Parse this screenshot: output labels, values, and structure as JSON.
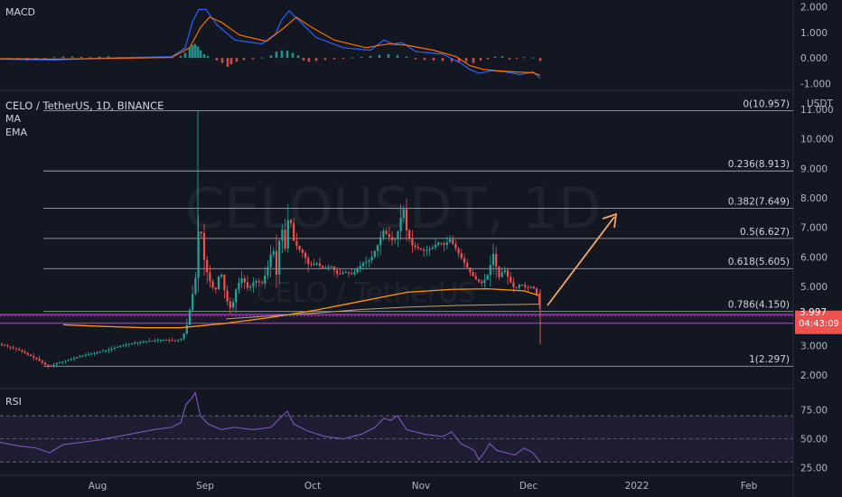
{
  "symbol_title": "CELO / TetherUS, 1D, BINANCE",
  "indicators": {
    "ma": "MA",
    "ema": "EMA",
    "macd": "MACD",
    "rsi": "RSI"
  },
  "watermark": {
    "main": "CELOUSDT, 1D",
    "sub": "CELO / TetherUS"
  },
  "currency": "USDT",
  "price_tag": {
    "price": "3.997",
    "countdown": "04:43:09",
    "value": 3.997
  },
  "colors": {
    "up": "#26a69a",
    "down": "#ef5350",
    "accent": "#ff9800",
    "rsi": "#7e57c2",
    "macd": "#2962ff",
    "signal": "#ff6d00"
  },
  "chart_data": {
    "type": "candlestick",
    "x_ticks": [
      "Aug",
      "Sep",
      "Oct",
      "Nov",
      "Dec",
      "2022",
      "Feb"
    ],
    "main_y_ticks": [
      "11.000",
      "10.000",
      "9.000",
      "8.000",
      "7.000",
      "6.000",
      "5.000",
      "4.000",
      "3.000",
      "2.000"
    ],
    "main_ylim": [
      1.6,
      11.4
    ],
    "fib_levels": [
      {
        "label": "0(10.957)",
        "value": 10.957
      },
      {
        "label": "0.236(8.913)",
        "value": 8.913
      },
      {
        "label": "0.382(7.649)",
        "value": 7.649
      },
      {
        "label": "0.5(6.627)",
        "value": 6.627
      },
      {
        "label": "0.618(5.605)",
        "value": 5.605
      },
      {
        "label": "0.786(4.150)",
        "value": 4.15
      },
      {
        "label": "1(2.297)",
        "value": 2.297
      }
    ],
    "support_band": [
      3.75,
      4.05
    ],
    "price_path": [
      [
        0,
        3.05
      ],
      [
        10,
        2.95
      ],
      [
        20,
        2.85
      ],
      [
        30,
        2.7
      ],
      [
        40,
        2.55
      ],
      [
        50,
        2.35
      ],
      [
        56,
        2.28
      ],
      [
        62,
        2.4
      ],
      [
        75,
        2.5
      ],
      [
        90,
        2.65
      ],
      [
        105,
        2.75
      ],
      [
        120,
        2.85
      ],
      [
        135,
        3.0
      ],
      [
        150,
        3.1
      ],
      [
        165,
        3.15
      ],
      [
        180,
        3.2
      ],
      [
        195,
        3.15
      ],
      [
        202,
        3.25
      ],
      [
        208,
        3.8
      ],
      [
        212,
        4.6
      ],
      [
        216,
        5.1
      ],
      [
        219,
        6.5
      ],
      [
        221,
        7.7
      ],
      [
        224,
        6.2
      ],
      [
        228,
        5.6
      ],
      [
        232,
        5.2
      ],
      [
        238,
        4.8
      ],
      [
        244,
        5.6
      ],
      [
        250,
        4.6
      ],
      [
        256,
        4.2
      ],
      [
        262,
        5.0
      ],
      [
        268,
        5.3
      ],
      [
        275,
        4.9
      ],
      [
        282,
        5.2
      ],
      [
        290,
        5.1
      ],
      [
        296,
        5.6
      ],
      [
        302,
        6.4
      ],
      [
        306,
        5.4
      ],
      [
        311,
        7.2
      ],
      [
        316,
        6.2
      ],
      [
        320,
        7.7
      ],
      [
        324,
        6.6
      ],
      [
        330,
        6.3
      ],
      [
        336,
        6.1
      ],
      [
        342,
        5.7
      ],
      [
        350,
        5.8
      ],
      [
        358,
        5.6
      ],
      [
        366,
        5.7
      ],
      [
        374,
        5.4
      ],
      [
        382,
        5.5
      ],
      [
        390,
        5.4
      ],
      [
        396,
        5.6
      ],
      [
        402,
        5.8
      ],
      [
        410,
        5.9
      ],
      [
        418,
        6.4
      ],
      [
        424,
        6.9
      ],
      [
        430,
        6.7
      ],
      [
        436,
        6.5
      ],
      [
        442,
        7.0
      ],
      [
        446,
        7.8
      ],
      [
        450,
        6.9
      ],
      [
        456,
        6.4
      ],
      [
        462,
        6.3
      ],
      [
        470,
        6.2
      ],
      [
        478,
        6.3
      ],
      [
        486,
        6.5
      ],
      [
        492,
        6.4
      ],
      [
        498,
        6.6
      ],
      [
        504,
        6.3
      ],
      [
        510,
        6.0
      ],
      [
        516,
        5.7
      ],
      [
        522,
        5.4
      ],
      [
        528,
        5.2
      ],
      [
        534,
        5.1
      ],
      [
        540,
        5.4
      ],
      [
        546,
        6.1
      ],
      [
        552,
        5.3
      ],
      [
        558,
        5.6
      ],
      [
        564,
        5.2
      ],
      [
        570,
        4.9
      ],
      [
        576,
        5.1
      ],
      [
        582,
        4.95
      ],
      [
        588,
        5.0
      ],
      [
        592,
        4.9
      ],
      [
        596,
        4.6
      ],
      [
        599,
        3.997
      ]
    ],
    "ma_path": [
      [
        70,
        3.7
      ],
      [
        110,
        3.65
      ],
      [
        160,
        3.6
      ],
      [
        200,
        3.6
      ],
      [
        250,
        3.75
      ],
      [
        300,
        3.95
      ],
      [
        350,
        4.2
      ],
      [
        400,
        4.5
      ],
      [
        450,
        4.8
      ],
      [
        500,
        4.9
      ],
      [
        540,
        4.92
      ],
      [
        580,
        4.85
      ],
      [
        596,
        4.7
      ]
    ],
    "ema_path": [
      [
        250,
        3.9
      ],
      [
        300,
        4.0
      ],
      [
        350,
        4.1
      ],
      [
        400,
        4.22
      ],
      [
        450,
        4.3
      ],
      [
        500,
        4.35
      ],
      [
        550,
        4.38
      ],
      [
        596,
        4.4
      ]
    ],
    "rsi": {
      "y_ticks": [
        "75.00",
        "50.00",
        "25.00"
      ],
      "ylim": [
        20,
        92
      ],
      "upper": 70,
      "mid": 50,
      "lower": 30,
      "path": [
        [
          0,
          47
        ],
        [
          20,
          44
        ],
        [
          40,
          42
        ],
        [
          55,
          38
        ],
        [
          70,
          45
        ],
        [
          90,
          47
        ],
        [
          110,
          49
        ],
        [
          130,
          52
        ],
        [
          150,
          55
        ],
        [
          170,
          58
        ],
        [
          190,
          60
        ],
        [
          200,
          64
        ],
        [
          206,
          80
        ],
        [
          212,
          85
        ],
        [
          216,
          90
        ],
        [
          222,
          70
        ],
        [
          230,
          63
        ],
        [
          245,
          58
        ],
        [
          260,
          60
        ],
        [
          280,
          58
        ],
        [
          300,
          60
        ],
        [
          310,
          68
        ],
        [
          318,
          74
        ],
        [
          325,
          63
        ],
        [
          340,
          57
        ],
        [
          360,
          52
        ],
        [
          380,
          50
        ],
        [
          400,
          54
        ],
        [
          415,
          60
        ],
        [
          425,
          68
        ],
        [
          432,
          66
        ],
        [
          440,
          70
        ],
        [
          450,
          58
        ],
        [
          470,
          54
        ],
        [
          490,
          52
        ],
        [
          500,
          56
        ],
        [
          510,
          46
        ],
        [
          525,
          40
        ],
        [
          530,
          32
        ],
        [
          536,
          38
        ],
        [
          542,
          46
        ],
        [
          550,
          40
        ],
        [
          560,
          38
        ],
        [
          570,
          36
        ],
        [
          580,
          42
        ],
        [
          590,
          38
        ],
        [
          598,
          30
        ]
      ]
    },
    "macd": {
      "y_ticks": [
        "2.000",
        "1.000",
        "0.000",
        "-1.000"
      ],
      "ylim": [
        -1.2,
        2.2
      ],
      "macd_path": [
        [
          0,
          -0.05
        ],
        [
          60,
          -0.08
        ],
        [
          120,
          0.0
        ],
        [
          190,
          0.05
        ],
        [
          205,
          0.4
        ],
        [
          213,
          1.4
        ],
        [
          220,
          1.9
        ],
        [
          228,
          1.9
        ],
        [
          240,
          1.3
        ],
        [
          260,
          0.7
        ],
        [
          290,
          0.55
        ],
        [
          305,
          0.95
        ],
        [
          312,
          1.5
        ],
        [
          320,
          1.85
        ],
        [
          330,
          1.5
        ],
        [
          350,
          0.8
        ],
        [
          380,
          0.4
        ],
        [
          410,
          0.3
        ],
        [
          425,
          0.7
        ],
        [
          435,
          0.55
        ],
        [
          445,
          0.6
        ],
        [
          460,
          0.25
        ],
        [
          490,
          0.15
        ],
        [
          510,
          -0.2
        ],
        [
          520,
          -0.45
        ],
        [
          530,
          -0.6
        ],
        [
          545,
          -0.5
        ],
        [
          560,
          -0.55
        ],
        [
          575,
          -0.65
        ],
        [
          590,
          -0.55
        ],
        [
          598,
          -0.8
        ]
      ],
      "signal_path": [
        [
          0,
          -0.03
        ],
        [
          60,
          -0.05
        ],
        [
          120,
          -0.02
        ],
        [
          190,
          0.02
        ],
        [
          210,
          0.4
        ],
        [
          222,
          1.2
        ],
        [
          232,
          1.6
        ],
        [
          245,
          1.4
        ],
        [
          265,
          0.9
        ],
        [
          295,
          0.65
        ],
        [
          315,
          1.2
        ],
        [
          328,
          1.6
        ],
        [
          345,
          1.2
        ],
        [
          370,
          0.7
        ],
        [
          405,
          0.4
        ],
        [
          430,
          0.55
        ],
        [
          450,
          0.5
        ],
        [
          480,
          0.3
        ],
        [
          505,
          0.05
        ],
        [
          520,
          -0.3
        ],
        [
          535,
          -0.45
        ],
        [
          550,
          -0.5
        ],
        [
          570,
          -0.55
        ],
        [
          590,
          -0.58
        ],
        [
          598,
          -0.68
        ]
      ],
      "hist_bars": [
        [
          10,
          -0.05
        ],
        [
          20,
          -0.08
        ],
        [
          30,
          -0.1
        ],
        [
          40,
          -0.06
        ],
        [
          50,
          -0.03
        ],
        [
          60,
          0.03
        ],
        [
          70,
          0.05
        ],
        [
          80,
          0.06
        ],
        [
          90,
          0.04
        ],
        [
          100,
          0.03
        ],
        [
          110,
          0.05
        ],
        [
          120,
          0.06
        ],
        [
          130,
          0.04
        ],
        [
          140,
          0.02
        ],
        [
          150,
          0.03
        ],
        [
          160,
          0.04
        ],
        [
          170,
          0.05
        ],
        [
          180,
          0.04
        ],
        [
          190,
          0.03
        ],
        [
          200,
          0.08
        ],
        [
          205,
          0.2
        ],
        [
          210,
          0.4
        ],
        [
          213,
          0.5
        ],
        [
          216,
          0.55
        ],
        [
          219,
          0.45
        ],
        [
          222,
          0.3
        ],
        [
          226,
          0.15
        ],
        [
          230,
          0.08
        ],
        [
          240,
          -0.1
        ],
        [
          246,
          -0.2
        ],
        [
          252,
          -0.35
        ],
        [
          256,
          -0.25
        ],
        [
          262,
          -0.15
        ],
        [
          270,
          -0.08
        ],
        [
          280,
          -0.05
        ],
        [
          290,
          0.02
        ],
        [
          300,
          0.1
        ],
        [
          306,
          0.25
        ],
        [
          312,
          0.3
        ],
        [
          318,
          0.28
        ],
        [
          324,
          0.2
        ],
        [
          330,
          0.1
        ],
        [
          336,
          -0.1
        ],
        [
          342,
          -0.15
        ],
        [
          350,
          -0.12
        ],
        [
          360,
          -0.08
        ],
        [
          370,
          -0.05
        ],
        [
          380,
          -0.03
        ],
        [
          390,
          0.02
        ],
        [
          400,
          0.04
        ],
        [
          410,
          0.08
        ],
        [
          420,
          0.12
        ],
        [
          430,
          0.15
        ],
        [
          440,
          0.1
        ],
        [
          450,
          0.05
        ],
        [
          460,
          -0.05
        ],
        [
          470,
          -0.08
        ],
        [
          480,
          -0.1
        ],
        [
          490,
          -0.12
        ],
        [
          500,
          -0.15
        ],
        [
          508,
          -0.18
        ],
        [
          516,
          -0.15
        ],
        [
          524,
          -0.2
        ],
        [
          532,
          -0.1
        ],
        [
          540,
          -0.05
        ],
        [
          548,
          0.05
        ],
        [
          556,
          0.06
        ],
        [
          564,
          -0.06
        ],
        [
          572,
          -0.04
        ],
        [
          580,
          0.03
        ],
        [
          590,
          0.02
        ],
        [
          598,
          -0.12
        ]
      ]
    }
  }
}
